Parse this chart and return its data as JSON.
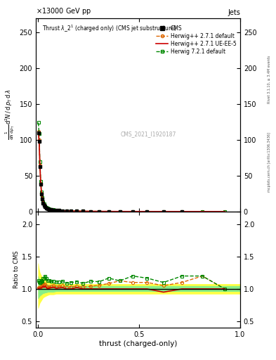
{
  "title_top_left": "13000 GeV pp",
  "title_top_right": "Jets",
  "plot_title": "Thrust $\\lambda\\_2^1$ (charged only) (CMS jet substructure)",
  "xlabel": "thrust (charged-only)",
  "ylabel_ratio": "Ratio to CMS",
  "watermark": "CMS_2021_I1920187",
  "rivet_label": "Rivet 3.1.10, ≥ 3.4M events",
  "mcplots_label": "mcplots.cern.ch [arXiv:1306.3436]",
  "ylim_main": [
    0,
    270
  ],
  "ylim_ratio": [
    0.4,
    2.2
  ],
  "yticks_main": [
    0,
    50,
    100,
    150,
    200,
    250
  ],
  "yticks_ratio": [
    0.5,
    1.0,
    1.5,
    2.0
  ],
  "xticks": [
    0.0,
    0.5,
    1.0
  ],
  "xlim": [
    -0.01,
    1.0
  ],
  "cms_color": "#000000",
  "herwig271_default_color": "#dd6600",
  "herwig271_ueee5_color": "#cc0000",
  "herwig721_color": "#008800",
  "band_yellow_color": "#ffff44",
  "band_green_color": "#88ee88",
  "data_x": [
    0.002,
    0.006,
    0.01,
    0.014,
    0.018,
    0.022,
    0.026,
    0.03,
    0.036,
    0.042,
    0.049,
    0.057,
    0.066,
    0.077,
    0.09,
    0.105,
    0.122,
    0.142,
    0.165,
    0.192,
    0.224,
    0.26,
    0.302,
    0.35,
    0.405,
    0.468,
    0.54,
    0.621,
    0.712,
    0.813,
    0.924
  ],
  "cms_y": [
    110,
    98,
    63,
    38,
    24,
    17,
    12,
    9,
    6.5,
    5,
    4,
    3.2,
    2.6,
    2.1,
    1.7,
    1.3,
    1.0,
    0.8,
    0.6,
    0.45,
    0.35,
    0.25,
    0.18,
    0.12,
    0.08,
    0.05,
    0.03,
    0.02,
    0.01,
    0.005,
    0.002
  ],
  "herwig271_def_y": [
    112,
    100,
    65,
    39,
    25,
    18,
    13,
    9.5,
    7,
    5.2,
    4.1,
    3.3,
    2.7,
    2.2,
    1.75,
    1.35,
    1.05,
    0.82,
    0.62,
    0.47,
    0.36,
    0.26,
    0.19,
    0.13,
    0.09,
    0.055,
    0.033,
    0.021,
    0.011,
    0.006,
    0.002
  ],
  "herwig271_ueee5_y": [
    111,
    99,
    64,
    38.5,
    24.5,
    17.5,
    12.5,
    9.2,
    6.8,
    5.1,
    4.0,
    3.25,
    2.65,
    2.15,
    1.72,
    1.32,
    1.02,
    0.8,
    0.6,
    0.46,
    0.35,
    0.25,
    0.18,
    0.12,
    0.08,
    0.05,
    0.03,
    0.019,
    0.01,
    0.005,
    0.002
  ],
  "herwig721_def_y": [
    124,
    109,
    69,
    42,
    27,
    19,
    14,
    10.5,
    7.8,
    5.8,
    4.5,
    3.6,
    2.9,
    2.35,
    1.88,
    1.44,
    1.12,
    0.87,
    0.66,
    0.5,
    0.38,
    0.28,
    0.2,
    0.14,
    0.09,
    0.06,
    0.035,
    0.022,
    0.012,
    0.006,
    0.002
  ],
  "ratio_x_full": [
    0.0,
    0.002,
    0.006,
    0.01,
    0.014,
    0.018,
    0.022,
    0.026,
    0.03,
    0.036,
    0.042,
    0.049,
    0.057,
    0.066,
    0.077,
    0.09,
    0.105,
    0.122,
    0.142,
    0.165,
    0.192,
    0.224,
    0.26,
    0.302,
    0.35,
    0.405,
    0.468,
    0.54,
    0.621,
    0.712,
    0.813,
    0.924,
    1.0
  ],
  "band_yellow_lo": [
    0.7,
    0.7,
    0.74,
    0.78,
    0.8,
    0.82,
    0.84,
    0.86,
    0.87,
    0.88,
    0.89,
    0.9,
    0.91,
    0.91,
    0.91,
    0.92,
    0.92,
    0.92,
    0.92,
    0.92,
    0.92,
    0.92,
    0.92,
    0.92,
    0.92,
    0.92,
    0.92,
    0.92,
    0.92,
    0.92,
    0.92,
    0.92,
    0.92
  ],
  "band_yellow_hi": [
    1.4,
    1.4,
    1.32,
    1.26,
    1.23,
    1.21,
    1.19,
    1.17,
    1.16,
    1.14,
    1.13,
    1.12,
    1.11,
    1.1,
    1.1,
    1.09,
    1.09,
    1.09,
    1.08,
    1.08,
    1.08,
    1.08,
    1.08,
    1.08,
    1.08,
    1.08,
    1.08,
    1.08,
    1.08,
    1.08,
    1.08,
    1.08,
    1.08
  ],
  "band_green_lo": [
    0.85,
    0.85,
    0.87,
    0.89,
    0.9,
    0.91,
    0.92,
    0.93,
    0.93,
    0.94,
    0.94,
    0.95,
    0.95,
    0.95,
    0.95,
    0.96,
    0.96,
    0.96,
    0.96,
    0.96,
    0.96,
    0.96,
    0.96,
    0.96,
    0.96,
    0.96,
    0.96,
    0.96,
    0.96,
    0.96,
    0.96,
    0.96,
    0.96
  ],
  "band_green_hi": [
    1.2,
    1.2,
    1.16,
    1.14,
    1.12,
    1.11,
    1.1,
    1.09,
    1.09,
    1.08,
    1.07,
    1.07,
    1.06,
    1.06,
    1.06,
    1.05,
    1.05,
    1.05,
    1.05,
    1.05,
    1.05,
    1.05,
    1.05,
    1.05,
    1.05,
    1.05,
    1.05,
    1.05,
    1.05,
    1.05,
    1.05,
    1.05,
    1.05
  ],
  "ratio_x": [
    0.002,
    0.006,
    0.01,
    0.014,
    0.018,
    0.022,
    0.026,
    0.03,
    0.036,
    0.042,
    0.049,
    0.057,
    0.066,
    0.077,
    0.09,
    0.105,
    0.122,
    0.142,
    0.165,
    0.192,
    0.224,
    0.26,
    0.302,
    0.35,
    0.405,
    0.468,
    0.54,
    0.621,
    0.712,
    0.813,
    0.924
  ],
  "ratio_h271_def": [
    1.018,
    1.02,
    1.032,
    1.026,
    1.042,
    1.059,
    1.083,
    1.056,
    1.077,
    1.04,
    1.025,
    1.031,
    1.038,
    1.048,
    1.029,
    1.038,
    1.05,
    1.025,
    1.033,
    1.044,
    1.029,
    1.04,
    1.056,
    1.083,
    1.125,
    1.1,
    1.1,
    1.05,
    1.1,
    1.2,
    1.0
  ],
  "ratio_h271_ueee5": [
    1.009,
    1.01,
    1.016,
    1.013,
    1.021,
    1.029,
    1.042,
    1.022,
    1.046,
    1.02,
    1.0,
    1.016,
    1.019,
    1.024,
    1.012,
    1.015,
    1.02,
    1.0,
    1.0,
    1.022,
    1.0,
    1.0,
    1.0,
    1.0,
    1.0,
    1.0,
    1.0,
    0.95,
    1.0,
    1.0,
    1.0
  ],
  "ratio_h721_def": [
    1.127,
    1.112,
    1.095,
    1.105,
    1.125,
    1.118,
    1.167,
    1.167,
    1.2,
    1.16,
    1.125,
    1.125,
    1.115,
    1.119,
    1.106,
    1.108,
    1.12,
    1.088,
    1.1,
    1.111,
    1.086,
    1.12,
    1.111,
    1.167,
    1.125,
    1.2,
    1.167,
    1.1,
    1.2,
    1.2,
    1.0
  ]
}
